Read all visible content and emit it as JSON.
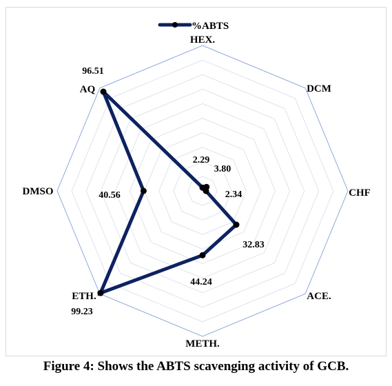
{
  "chart_data": {
    "type": "radar",
    "legend_position": "top",
    "series": [
      {
        "name": "%ABTS",
        "values": [
          2.29,
          3.8,
          2.34,
          32.83,
          44.24,
          99.23,
          40.56,
          96.51
        ],
        "value_labels": [
          "2.29",
          "3.80",
          "2.34",
          "32.83",
          "44.24",
          "99.23",
          "40.56",
          "96.51"
        ],
        "color": "#0d2260"
      }
    ],
    "categories": [
      "HEX.",
      "DCM",
      "CHF",
      "ACE.",
      "METH.",
      "ETH.",
      "DMSO",
      "AQ"
    ],
    "rlim": [
      0,
      100
    ],
    "gridlines": true,
    "grid_color": "#8faadc"
  },
  "caption": "Figure 4: Shows the ABTS scavenging activity of GCB."
}
